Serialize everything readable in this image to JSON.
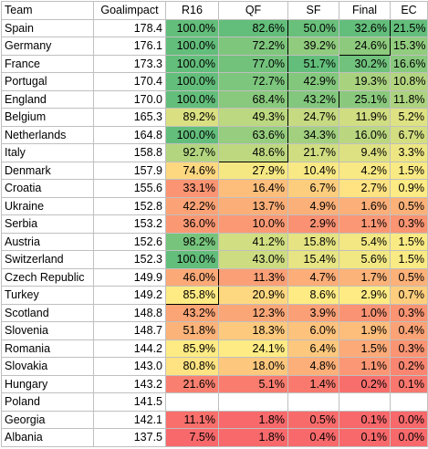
{
  "headers": [
    "Team",
    "Goalimpact",
    "R16",
    "QF",
    "SF",
    "Final",
    "EC"
  ],
  "rows": [
    {
      "team": "Spain",
      "gi": "178.4",
      "r16": "100.0%",
      "qf": "82.6%",
      "sf": "50.0%",
      "final": "32.6%",
      "ec": "21.5%"
    },
    {
      "team": "Germany",
      "gi": "176.1",
      "r16": "100.0%",
      "qf": "72.2%",
      "sf": "39.2%",
      "final": "24.6%",
      "ec": "15.3%"
    },
    {
      "team": "France",
      "gi": "173.3",
      "r16": "100.0%",
      "qf": "77.0%",
      "sf": "51.7%",
      "final": "30.2%",
      "ec": "16.6%"
    },
    {
      "team": "Portugal",
      "gi": "170.4",
      "r16": "100.0%",
      "qf": "72.7%",
      "sf": "42.9%",
      "final": "19.3%",
      "ec": "10.8%"
    },
    {
      "team": "England",
      "gi": "170.0",
      "r16": "100.0%",
      "qf": "68.4%",
      "sf": "43.2%",
      "final": "25.1%",
      "ec": "11.8%"
    },
    {
      "team": "Belgium",
      "gi": "165.3",
      "r16": "89.2%",
      "qf": "49.3%",
      "sf": "24.7%",
      "final": "11.9%",
      "ec": "5.2%"
    },
    {
      "team": "Netherlands",
      "gi": "164.8",
      "r16": "100.0%",
      "qf": "63.6%",
      "sf": "34.3%",
      "final": "16.0%",
      "ec": "6.7%"
    },
    {
      "team": "Italy",
      "gi": "158.8",
      "r16": "92.7%",
      "qf": "48.6%",
      "sf": "21.7%",
      "final": "9.4%",
      "ec": "3.3%"
    },
    {
      "team": "Denmark",
      "gi": "157.9",
      "r16": "74.6%",
      "qf": "27.9%",
      "sf": "10.4%",
      "final": "4.2%",
      "ec": "1.5%"
    },
    {
      "team": "Croatia",
      "gi": "155.6",
      "r16": "33.1%",
      "qf": "16.4%",
      "sf": "6.7%",
      "final": "2.7%",
      "ec": "0.9%"
    },
    {
      "team": "Ukraine",
      "gi": "152.8",
      "r16": "42.2%",
      "qf": "13.7%",
      "sf": "4.9%",
      "final": "1.6%",
      "ec": "0.5%"
    },
    {
      "team": "Serbia",
      "gi": "153.2",
      "r16": "36.0%",
      "qf": "10.0%",
      "sf": "2.9%",
      "final": "1.1%",
      "ec": "0.3%"
    },
    {
      "team": "Austria",
      "gi": "152.6",
      "r16": "98.2%",
      "qf": "41.2%",
      "sf": "15.8%",
      "final": "5.4%",
      "ec": "1.5%"
    },
    {
      "team": "Switzerland",
      "gi": "152.3",
      "r16": "100.0%",
      "qf": "43.0%",
      "sf": "15.4%",
      "final": "5.6%",
      "ec": "1.5%"
    },
    {
      "team": "Czech Republic",
      "gi": "149.9",
      "r16": "46.0%",
      "qf": "11.3%",
      "sf": "4.7%",
      "final": "1.7%",
      "ec": "0.5%"
    },
    {
      "team": "Turkey",
      "gi": "149.2",
      "r16": "85.8%",
      "qf": "20.9%",
      "sf": "8.6%",
      "final": "2.9%",
      "ec": "0.7%"
    },
    {
      "team": "Scotland",
      "gi": "148.8",
      "r16": "43.2%",
      "qf": "12.3%",
      "sf": "3.9%",
      "final": "1.0%",
      "ec": "0.3%"
    },
    {
      "team": "Slovenia",
      "gi": "148.7",
      "r16": "51.8%",
      "qf": "18.3%",
      "sf": "6.0%",
      "final": "1.9%",
      "ec": "0.4%"
    },
    {
      "team": "Romania",
      "gi": "144.2",
      "r16": "85.9%",
      "qf": "24.1%",
      "sf": "6.4%",
      "final": "1.5%",
      "ec": "0.3%"
    },
    {
      "team": "Slovakia",
      "gi": "143.0",
      "r16": "80.8%",
      "qf": "18.0%",
      "sf": "4.8%",
      "final": "1.1%",
      "ec": "0.2%"
    },
    {
      "team": "Hungary",
      "gi": "143.2",
      "r16": "21.6%",
      "qf": "5.1%",
      "sf": "1.4%",
      "final": "0.2%",
      "ec": "0.1%"
    },
    {
      "team": "Poland",
      "gi": "141.5",
      "r16": "",
      "qf": "",
      "sf": "",
      "final": "",
      "ec": ""
    },
    {
      "team": "Georgia",
      "gi": "142.1",
      "r16": "11.1%",
      "qf": "1.8%",
      "sf": "0.5%",
      "final": "0.1%",
      "ec": "0.0%"
    },
    {
      "team": "Albania",
      "gi": "137.5",
      "r16": "7.5%",
      "qf": "1.8%",
      "sf": "0.4%",
      "final": "0.1%",
      "ec": "0.0%"
    }
  ]
}
